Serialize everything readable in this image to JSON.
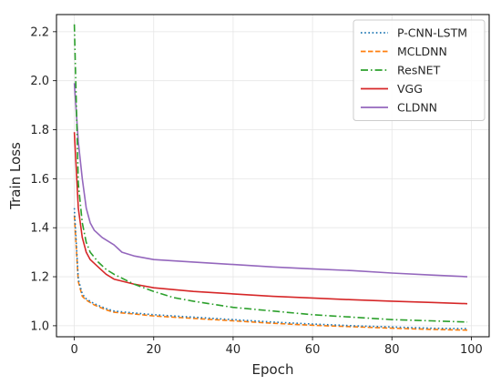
{
  "chart_data": {
    "type": "line",
    "title": "",
    "xlabel": "Epoch",
    "ylabel": "Train Loss",
    "xlim": [
      -4.5,
      104.5
    ],
    "ylim": [
      0.955,
      2.27
    ],
    "xticks": [
      0,
      20,
      40,
      60,
      80,
      100
    ],
    "yticks": [
      1.0,
      1.2,
      1.4,
      1.6,
      1.8,
      2.0,
      2.2
    ],
    "xtick_labels": [
      "0",
      "20",
      "40",
      "60",
      "80",
      "100"
    ],
    "ytick_labels": [
      "1.0",
      "1.2",
      "1.4",
      "1.6",
      "1.8",
      "2.0",
      "2.2"
    ],
    "grid": true,
    "legend_position": "top-right",
    "series": [
      {
        "name": "P-CNN-LSTM",
        "color": "#1f77b4",
        "dash": "dotted",
        "x": [
          0,
          1,
          2,
          3,
          5,
          8,
          10,
          15,
          20,
          30,
          40,
          50,
          60,
          70,
          80,
          90,
          99
        ],
        "y": [
          1.48,
          1.19,
          1.13,
          1.11,
          1.09,
          1.07,
          1.06,
          1.052,
          1.045,
          1.035,
          1.025,
          1.015,
          1.007,
          1.0,
          0.995,
          0.99,
          0.988
        ]
      },
      {
        "name": "MCLDNN",
        "color": "#ff7f0e",
        "dash": "dashed",
        "x": [
          0,
          1,
          2,
          3,
          5,
          8,
          10,
          15,
          20,
          30,
          40,
          50,
          60,
          70,
          80,
          90,
          99
        ],
        "y": [
          1.45,
          1.18,
          1.12,
          1.105,
          1.085,
          1.065,
          1.055,
          1.048,
          1.04,
          1.03,
          1.02,
          1.01,
          1.002,
          0.996,
          0.99,
          0.985,
          0.982
        ]
      },
      {
        "name": "ResNET",
        "color": "#2ca02c",
        "dash": "dashdot",
        "x": [
          0,
          1,
          2,
          3,
          4,
          6,
          8,
          10,
          15,
          20,
          25,
          30,
          40,
          50,
          60,
          70,
          80,
          90,
          99
        ],
        "y": [
          2.23,
          1.58,
          1.42,
          1.34,
          1.3,
          1.26,
          1.23,
          1.21,
          1.17,
          1.14,
          1.115,
          1.1,
          1.075,
          1.06,
          1.045,
          1.035,
          1.025,
          1.02,
          1.015
        ]
      },
      {
        "name": "VGG",
        "color": "#d62728",
        "dash": "solid",
        "x": [
          0,
          1,
          2,
          3,
          4,
          6,
          8,
          10,
          15,
          20,
          30,
          40,
          50,
          60,
          70,
          80,
          90,
          99
        ],
        "y": [
          1.79,
          1.48,
          1.36,
          1.3,
          1.27,
          1.24,
          1.21,
          1.19,
          1.17,
          1.155,
          1.14,
          1.13,
          1.12,
          1.113,
          1.106,
          1.1,
          1.095,
          1.09
        ]
      },
      {
        "name": "CLDNN",
        "color": "#9467bd",
        "dash": "solid",
        "x": [
          0,
          1,
          2,
          3,
          4,
          5,
          7,
          10,
          12,
          15,
          20,
          30,
          40,
          50,
          60,
          70,
          80,
          90,
          99
        ],
        "y": [
          1.99,
          1.75,
          1.6,
          1.48,
          1.42,
          1.39,
          1.36,
          1.33,
          1.3,
          1.285,
          1.27,
          1.26,
          1.25,
          1.24,
          1.232,
          1.225,
          1.215,
          1.207,
          1.2
        ]
      }
    ]
  }
}
